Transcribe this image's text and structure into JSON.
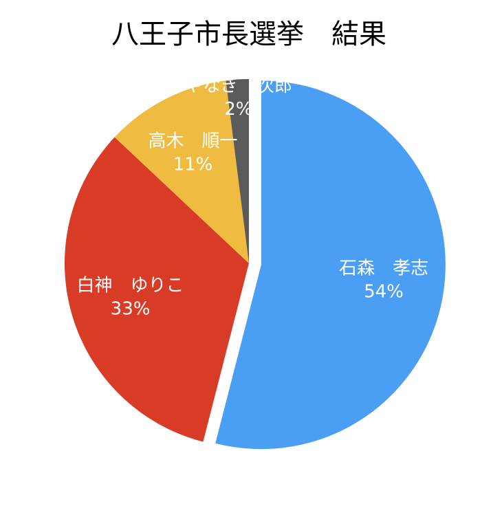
{
  "chart_data": {
    "type": "pie",
    "title": "八王子市長選挙　結果",
    "categories": [
      "石森　孝志",
      "白神　ゆりこ",
      "高木　順一",
      "やなぎ　次郎"
    ],
    "values": [
      54,
      33,
      11,
      2
    ],
    "value_labels": [
      "54%",
      "33%",
      "11%",
      "2%"
    ],
    "colors": [
      "#4a9ff5",
      "#d93c26",
      "#efbb40",
      "#5a5a5a"
    ]
  }
}
